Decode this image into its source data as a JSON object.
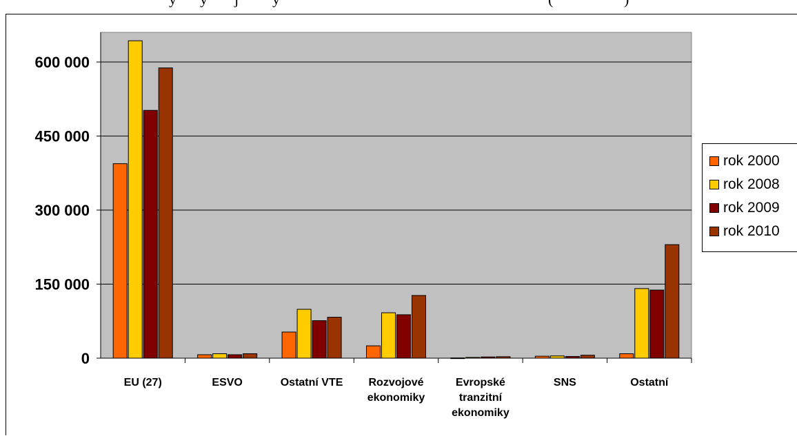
{
  "chart_data": {
    "type": "bar",
    "title": "",
    "xlabel": "",
    "ylabel": "",
    "ylim": [
      0,
      600000
    ],
    "y_ticks": [
      0,
      150000,
      300000,
      450000,
      600000
    ],
    "y_tick_labels": [
      "0",
      "150 000",
      "300 000",
      "450 000",
      "600 000"
    ],
    "categories": [
      [
        "EU (27)"
      ],
      [
        "ESVO"
      ],
      [
        "Ostatní VTE"
      ],
      [
        "Rozvojové",
        "ekonomiky"
      ],
      [
        "Evropské",
        "tranzitní",
        "ekonomiky"
      ],
      [
        "SNS"
      ],
      [
        "Ostatní"
      ]
    ],
    "series": [
      {
        "name": "rok 2000",
        "color": "#ff6600",
        "values": [
          394000,
          7000,
          53000,
          25000,
          500,
          4000,
          9000
        ]
      },
      {
        "name": "rok 2008",
        "color": "#ffcc00",
        "values": [
          643000,
          9000,
          99000,
          92000,
          1500,
          4500,
          141000
        ]
      },
      {
        "name": "rok 2009",
        "color": "#800000",
        "values": [
          502000,
          7000,
          76000,
          88000,
          2500,
          3500,
          138000
        ]
      },
      {
        "name": "rok 2010",
        "color": "#993300",
        "values": [
          588000,
          9000,
          83000,
          127000,
          3000,
          6000,
          230000
        ]
      }
    ],
    "grid": true,
    "plot_background": "#c0c0c0",
    "legend_position": "right"
  }
}
